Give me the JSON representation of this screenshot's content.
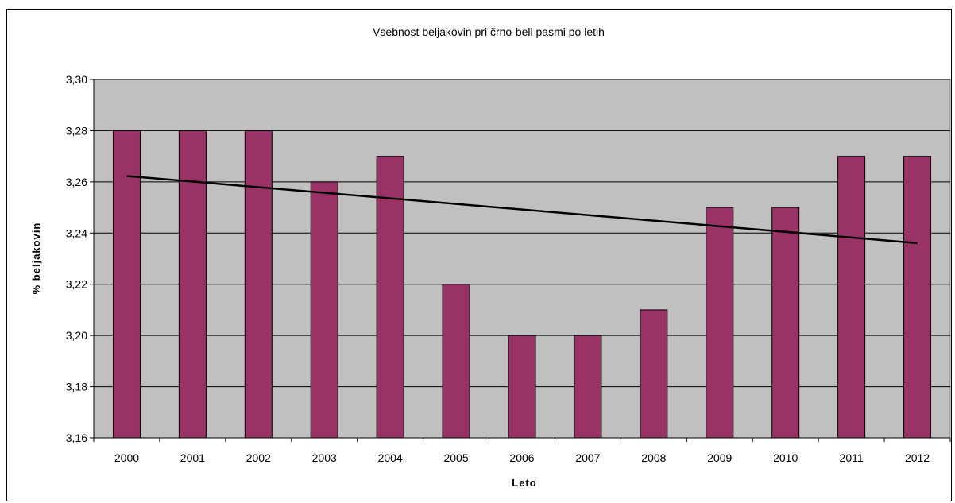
{
  "chart_data": {
    "type": "bar",
    "title": "Vsebnost beljakovin pri črno-beli pasmi po letih",
    "xlabel": "Leto",
    "ylabel": "% beljakovin",
    "categories": [
      "2000",
      "2001",
      "2002",
      "2003",
      "2004",
      "2005",
      "2006",
      "2007",
      "2008",
      "2009",
      "2010",
      "2011",
      "2012"
    ],
    "values": [
      3.28,
      3.28,
      3.28,
      3.26,
      3.27,
      3.22,
      3.2,
      3.2,
      3.21,
      3.25,
      3.25,
      3.27,
      3.27
    ],
    "ylim": [
      3.16,
      3.3
    ],
    "yticks": [
      3.16,
      3.18,
      3.2,
      3.22,
      3.24,
      3.26,
      3.28,
      3.3
    ],
    "ytick_labels": [
      "3,16",
      "3,18",
      "3,20",
      "3,22",
      "3,24",
      "3,26",
      "3,28",
      "3,30"
    ],
    "trendline": {
      "type": "linear",
      "start": 3.2623,
      "end": 3.2361
    },
    "grid": true,
    "legend": "none",
    "colors": {
      "bar": "#993366",
      "plot_bg": "#c0c0c0",
      "trend": "#000000"
    }
  }
}
